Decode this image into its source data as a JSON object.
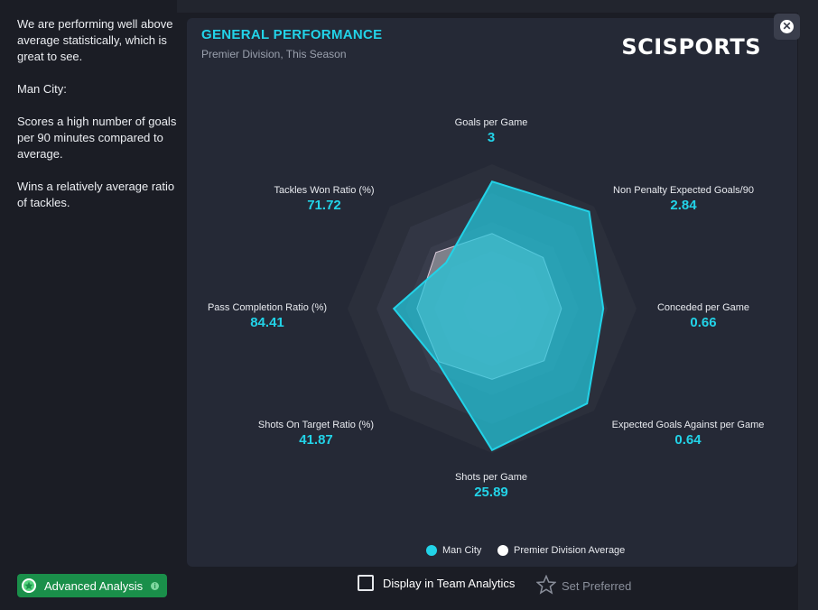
{
  "summary": {
    "p1": "We are performing well above average statistically, which is great to see.",
    "p2": "Man City:",
    "p3": "Scores a high number of goals per 90 minutes compared to average.",
    "p4": "Wins a relatively average ratio of tackles."
  },
  "advanced_button": {
    "label": "Advanced Analysis",
    "icon": "star-icon",
    "info_icon": "info-icon"
  },
  "panel": {
    "title": "GENERAL PERFORMANCE",
    "subtitle": "Premier Division, This Season",
    "logo": "SCISPORTS",
    "close_icon": "close-icon"
  },
  "metrics": [
    {
      "label": "Goals per Game",
      "value": "3",
      "team": 0.88,
      "avg": 0.52
    },
    {
      "label": "Non Penalty Expected Goals/90",
      "value": "2.84",
      "team": 0.95,
      "avg": 0.5
    },
    {
      "label": "Conceded per Game",
      "value": "0.66",
      "team": 0.77,
      "avg": 0.48
    },
    {
      "label": "Expected Goals Against per Game",
      "value": "0.64",
      "team": 0.93,
      "avg": 0.51
    },
    {
      "label": "Shots per Game",
      "value": "25.89",
      "team": 0.98,
      "avg": 0.49
    },
    {
      "label": "Shots On Target Ratio (%)",
      "value": "41.87",
      "team": 0.53,
      "avg": 0.52
    },
    {
      "label": "Pass Completion Ratio (%)",
      "value": "84.41",
      "team": 0.68,
      "avg": 0.52
    },
    {
      "label": "Tackles Won Ratio (%)",
      "value": "71.72",
      "team": 0.45,
      "avg": 0.55
    }
  ],
  "legend": {
    "team": "Man City",
    "average": "Premier Division Average"
  },
  "controls": {
    "display_label": "Display in Team Analytics",
    "preferred_label": "Set Preferred",
    "preferred_icon": "star-outline-icon"
  },
  "colors": {
    "accent": "#22d3e8",
    "team_fill": "#22c8dc",
    "avg_fill": "#ffffff",
    "button": "#1a8f4a"
  }
}
